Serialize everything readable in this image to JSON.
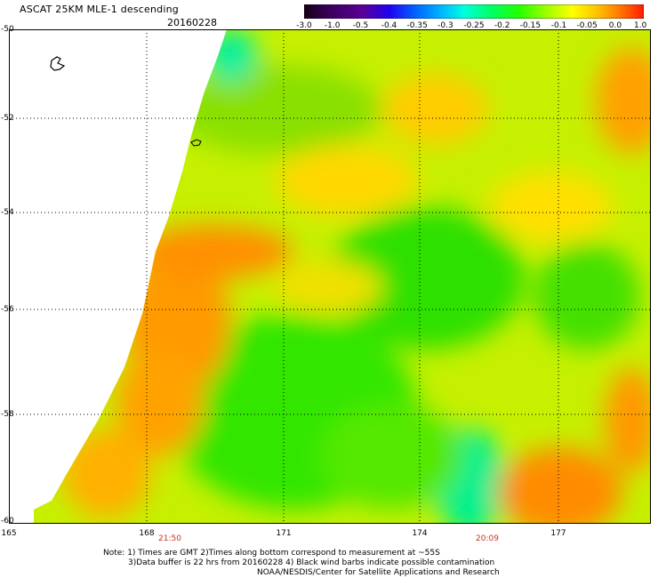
{
  "title": "ASCAT 25KM MLE-1 descending",
  "date": "20160228",
  "colorbar": {
    "labels": [
      "-3.0",
      "-1.0",
      "-0.5",
      "-0.4",
      "-0.35",
      "-0.3",
      "-0.25",
      "-0.2",
      "-0.15",
      "-0.1",
      "-0.05",
      "0.0",
      "1.0"
    ],
    "colors": [
      "#150015",
      "#5a0095",
      "#2200ee",
      "#0066ff",
      "#00bbff",
      "#00ffdd",
      "#00ff66",
      "#22ff00",
      "#99ff00",
      "#ffff00",
      "#ffbb00",
      "#ff7700",
      "#ff1a00"
    ]
  },
  "axes": {
    "lat_labels": [
      "-50",
      "-52",
      "-54",
      "-56",
      "-58",
      "-60"
    ],
    "lat_values": [
      -50,
      -52,
      -54,
      -56,
      -58,
      -60
    ],
    "lon_labels": [
      "165",
      "168",
      "171",
      "174",
      "177"
    ],
    "lon_values": [
      165,
      168,
      171,
      174,
      177
    ],
    "lat_range": [
      -60,
      -50
    ],
    "lon_range": [
      165,
      179.1
    ]
  },
  "times": [
    "21:50",
    "20:09"
  ],
  "notes": [
    "Note: 1) Times are GMT 2)Times along bottom correspond to measurement at ~55S",
    "3)Data buffer is 22 hrs from 20160228 4) Black wind barbs indicate possible contamination",
    "NOAA/NESDIS/Center for Satellite Applications and Research"
  ]
}
